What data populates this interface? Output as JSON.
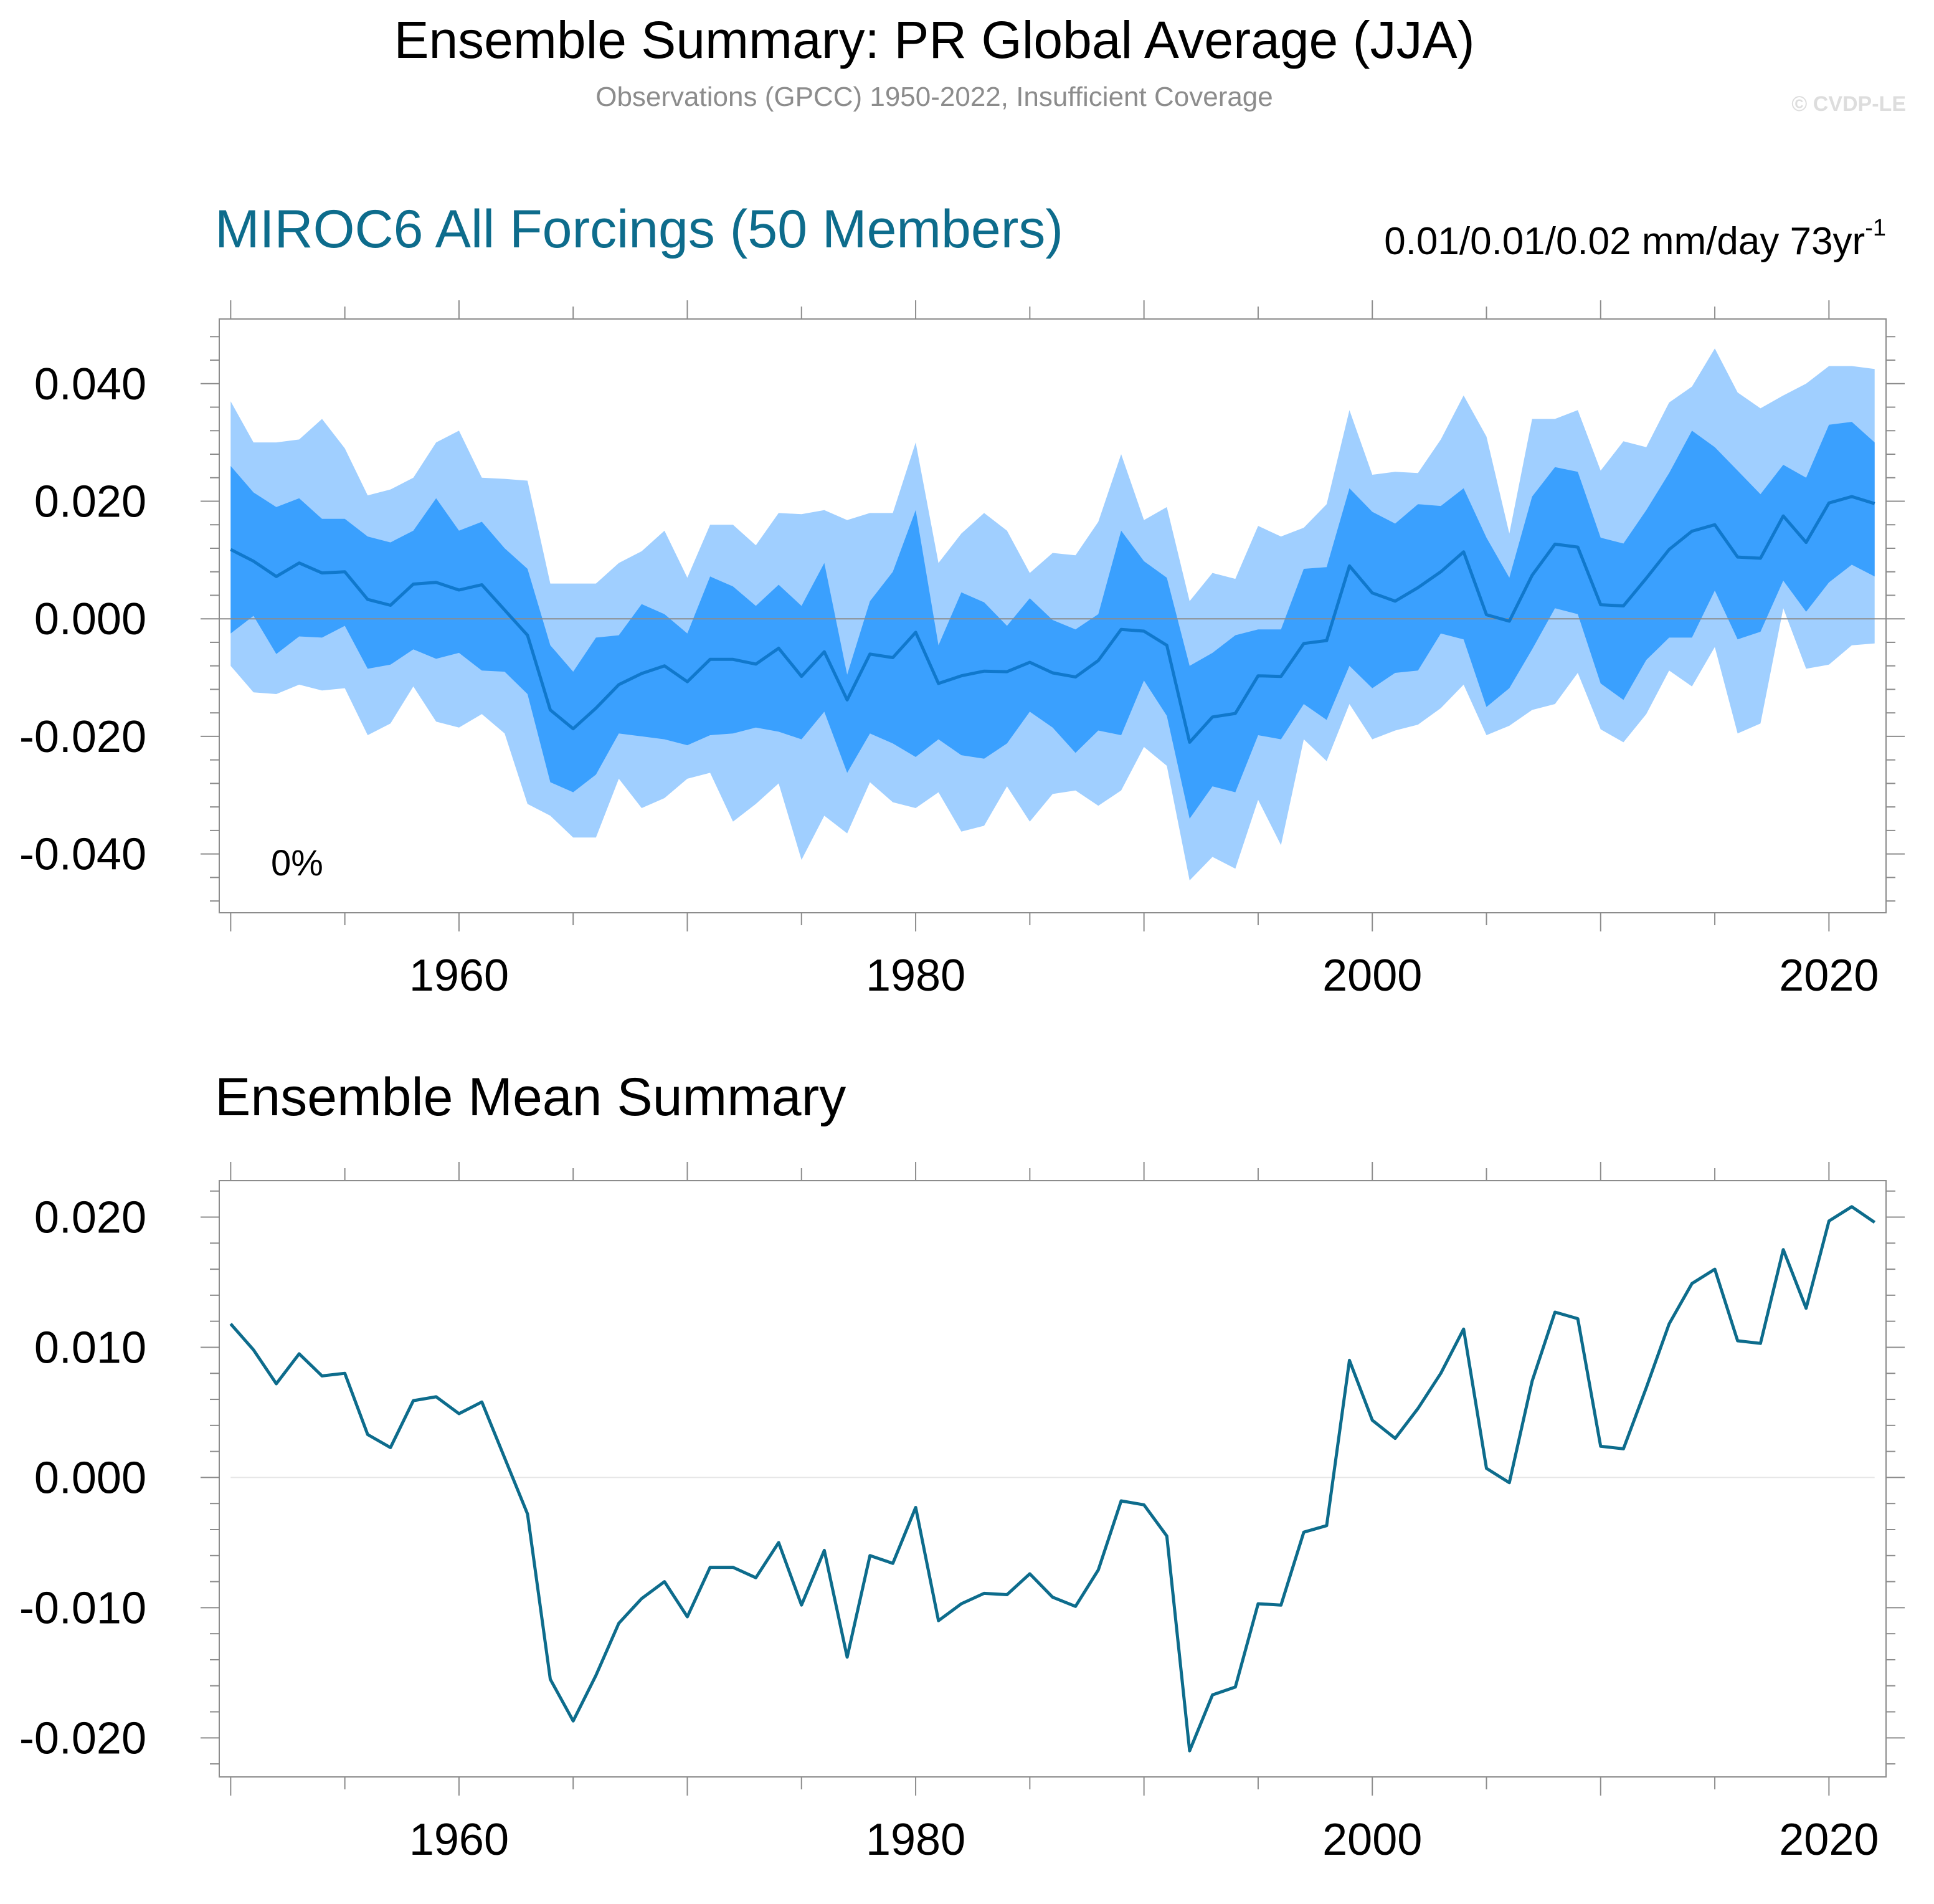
{
  "header": {
    "title": "Ensemble Summary: PR Global Average (JJA)",
    "subtitle": "Observations (GPCC) 1950-2022, Insufficient Coverage",
    "watermark": "© CVDP-LE"
  },
  "colors": {
    "band_outer": "#a0cfff",
    "band_inner": "#3aa0fe",
    "ens_mean_line": "#1078cc",
    "summary_line": "#0d6c8c",
    "panel1_title": "#0d6c8c",
    "axis": "#8c8c8c"
  },
  "chart_data": [
    {
      "type": "area",
      "title": "MIROC6 All Forcings (50 Members)",
      "trend_label": "0.01/0.01/0.02 mm/day 73yr",
      "trend_label_sup": "-1",
      "percent_label": "0%",
      "xlim": [
        1949.5,
        2022.5
      ],
      "ylim": [
        -0.05,
        0.051
      ],
      "xticks": [
        1960,
        1980,
        2000,
        2020
      ],
      "xtick_labels": [
        "1960",
        "1980",
        "2000",
        "2020"
      ],
      "yticks": [
        0.04,
        0.02,
        0.0,
        -0.02,
        -0.04
      ],
      "ytick_labels": [
        "0.040",
        "0.020",
        "0.000",
        "-0.020",
        "-0.040"
      ],
      "x": [
        1950,
        1951,
        1952,
        1953,
        1954,
        1955,
        1956,
        1957,
        1958,
        1959,
        1960,
        1961,
        1962,
        1963,
        1964,
        1965,
        1966,
        1967,
        1968,
        1969,
        1970,
        1971,
        1972,
        1973,
        1974,
        1975,
        1976,
        1977,
        1978,
        1979,
        1980,
        1981,
        1982,
        1983,
        1984,
        1985,
        1986,
        1987,
        1988,
        1989,
        1990,
        1991,
        1992,
        1993,
        1994,
        1995,
        1996,
        1997,
        1998,
        1999,
        2000,
        2001,
        2002,
        2003,
        2004,
        2005,
        2006,
        2007,
        2008,
        2009,
        2010,
        2011,
        2012,
        2013,
        2014,
        2015,
        2016,
        2017,
        2018,
        2019,
        2020,
        2021,
        2022
      ],
      "series": [
        {
          "name": "max",
          "values": [
            0.037,
            0.03,
            0.03,
            0.0305,
            0.034,
            0.029,
            0.021,
            0.022,
            0.024,
            0.03,
            0.032,
            0.024,
            0.0238,
            0.0235,
            0.006,
            0.006,
            0.006,
            0.0095,
            0.0115,
            0.015,
            0.007,
            0.016,
            0.016,
            0.0125,
            0.018,
            0.0178,
            0.0185,
            0.0168,
            0.018,
            0.018,
            0.03,
            0.0095,
            0.0145,
            0.018,
            0.015,
            0.0078,
            0.0112,
            0.0108,
            0.0165,
            0.028,
            0.0168,
            0.019,
            0.003,
            0.0078,
            0.0068,
            0.0158,
            0.014,
            0.0155,
            0.0195,
            0.0355,
            0.0245,
            0.025,
            0.0248,
            0.0305,
            0.038,
            0.031,
            0.0145,
            0.034,
            0.034,
            0.0355,
            0.0252,
            0.0302,
            0.0292,
            0.0368,
            0.0395,
            0.046,
            0.0385,
            0.0358,
            0.038,
            0.04,
            0.043,
            0.043,
            0.0425
          ]
        },
        {
          "name": "p90",
          "values": [
            0.026,
            0.0215,
            0.019,
            0.0205,
            0.017,
            0.017,
            0.014,
            0.013,
            0.015,
            0.0205,
            0.015,
            0.0165,
            0.012,
            0.0085,
            -0.0045,
            -0.009,
            -0.0032,
            -0.0028,
            0.0025,
            0.0008,
            -0.0025,
            0.0072,
            0.0055,
            0.0022,
            0.0058,
            0.0022,
            0.0095,
            -0.0095,
            0.003,
            0.008,
            0.0185,
            -0.0045,
            0.0045,
            0.0028,
            -0.0012,
            0.0035,
            -0.0002,
            -0.0018,
            0.0008,
            0.015,
            0.0098,
            0.007,
            -0.008,
            -0.0058,
            -0.0028,
            -0.0018,
            -0.0018,
            0.0085,
            0.0088,
            0.0222,
            0.0182,
            0.0162,
            0.0195,
            0.0192,
            0.0222,
            0.0138,
            0.007,
            0.0208,
            0.0258,
            0.025,
            0.0138,
            0.0128,
            0.0185,
            0.0248,
            0.032,
            0.0292,
            0.0252,
            0.0212,
            0.0262,
            0.024,
            0.033,
            0.0335,
            0.03
          ]
        },
        {
          "name": "mean",
          "values": [
            0.0118,
            0.0098,
            0.0072,
            0.0095,
            0.0078,
            0.008,
            0.0033,
            0.0023,
            0.0059,
            0.0062,
            0.0049,
            0.0058,
            0.0015,
            -0.0028,
            -0.0155,
            -0.0187,
            -0.0152,
            -0.0112,
            -0.0093,
            -0.008,
            -0.0107,
            -0.0069,
            -0.0069,
            -0.0077,
            -0.005,
            -0.0098,
            -0.0056,
            -0.0138,
            -0.006,
            -0.0066,
            -0.0023,
            -0.011,
            -0.0097,
            -0.0089,
            -0.009,
            -0.0074,
            -0.0092,
            -0.0099,
            -0.0071,
            -0.0018,
            -0.0021,
            -0.0045,
            -0.021,
            -0.0167,
            -0.0161,
            -0.0097,
            -0.0098,
            -0.0042,
            -0.0037,
            0.009,
            0.0044,
            0.003,
            0.0053,
            0.008,
            0.0114,
            0.0007,
            -0.0004,
            0.0074,
            0.0127,
            0.0122,
            0.0024,
            0.0022,
            0.0069,
            0.0118,
            0.0149,
            0.016,
            0.0105,
            0.0103,
            0.0175,
            0.013,
            0.0197,
            0.0208,
            0.0196
          ]
        },
        {
          "name": "p10",
          "values": [
            -0.0025,
            0.0005,
            -0.006,
            -0.003,
            -0.0032,
            -0.0012,
            -0.0085,
            -0.0078,
            -0.0052,
            -0.0068,
            -0.0058,
            -0.0088,
            -0.009,
            -0.0128,
            -0.0278,
            -0.0295,
            -0.0265,
            -0.0195,
            -0.02,
            -0.0205,
            -0.0215,
            -0.0198,
            -0.0195,
            -0.0185,
            -0.0192,
            -0.0205,
            -0.0158,
            -0.0262,
            -0.0195,
            -0.0212,
            -0.0235,
            -0.0205,
            -0.0232,
            -0.0238,
            -0.0212,
            -0.0158,
            -0.0185,
            -0.0228,
            -0.019,
            -0.0198,
            -0.0105,
            -0.0165,
            -0.034,
            -0.0285,
            -0.0295,
            -0.0198,
            -0.0205,
            -0.0145,
            -0.0172,
            -0.008,
            -0.0118,
            -0.0092,
            -0.0088,
            -0.0025,
            -0.0035,
            -0.015,
            -0.0118,
            -0.0052,
            0.0018,
            0.0008,
            -0.011,
            -0.0138,
            -0.007,
            -0.0032,
            -0.0032,
            0.0048,
            -0.0035,
            -0.0022,
            0.0065,
            0.0012,
            0.0062,
            0.0092,
            0.0072
          ]
        },
        {
          "name": "min",
          "values": [
            -0.008,
            -0.0125,
            -0.0128,
            -0.0112,
            -0.0122,
            -0.0118,
            -0.0198,
            -0.0178,
            -0.0115,
            -0.0175,
            -0.0185,
            -0.0162,
            -0.0195,
            -0.0315,
            -0.0335,
            -0.0372,
            -0.0372,
            -0.0272,
            -0.0322,
            -0.0305,
            -0.0272,
            -0.0262,
            -0.0345,
            -0.0315,
            -0.028,
            -0.041,
            -0.0335,
            -0.0365,
            -0.0278,
            -0.0312,
            -0.0322,
            -0.0295,
            -0.0362,
            -0.0352,
            -0.0285,
            -0.0345,
            -0.0298,
            -0.0292,
            -0.0318,
            -0.0292,
            -0.0218,
            -0.025,
            -0.0445,
            -0.0405,
            -0.0425,
            -0.0308,
            -0.0385,
            -0.0205,
            -0.0242,
            -0.0145,
            -0.0205,
            -0.019,
            -0.018,
            -0.0152,
            -0.0112,
            -0.0198,
            -0.0182,
            -0.0155,
            -0.0145,
            -0.0092,
            -0.0188,
            -0.021,
            -0.0162,
            -0.0088,
            -0.0115,
            -0.0048,
            -0.0195,
            -0.0178,
            0.0018,
            -0.0085,
            -0.0078,
            -0.0045,
            -0.0042
          ]
        }
      ]
    },
    {
      "type": "line",
      "title": "Ensemble Mean Summary",
      "xlim": [
        1949.5,
        2022.5
      ],
      "ylim": [
        -0.023,
        0.0228
      ],
      "xticks": [
        1960,
        1980,
        2000,
        2020
      ],
      "xtick_labels": [
        "1960",
        "1980",
        "2000",
        "2020"
      ],
      "yticks": [
        0.02,
        0.01,
        0.0,
        -0.01,
        -0.02
      ],
      "ytick_labels": [
        "0.020",
        "0.010",
        "0.000",
        "-0.010",
        "-0.020"
      ],
      "x": [
        1950,
        1951,
        1952,
        1953,
        1954,
        1955,
        1956,
        1957,
        1958,
        1959,
        1960,
        1961,
        1962,
        1963,
        1964,
        1965,
        1966,
        1967,
        1968,
        1969,
        1970,
        1971,
        1972,
        1973,
        1974,
        1975,
        1976,
        1977,
        1978,
        1979,
        1980,
        1981,
        1982,
        1983,
        1984,
        1985,
        1986,
        1987,
        1988,
        1989,
        1990,
        1991,
        1992,
        1993,
        1994,
        1995,
        1996,
        1997,
        1998,
        1999,
        2000,
        2001,
        2002,
        2003,
        2004,
        2005,
        2006,
        2007,
        2008,
        2009,
        2010,
        2011,
        2012,
        2013,
        2014,
        2015,
        2016,
        2017,
        2018,
        2019,
        2020,
        2021,
        2022
      ],
      "values": [
        0.0118,
        0.0098,
        0.0072,
        0.0095,
        0.0078,
        0.008,
        0.0033,
        0.0023,
        0.0059,
        0.0062,
        0.0049,
        0.0058,
        0.0015,
        -0.0028,
        -0.0155,
        -0.0187,
        -0.0152,
        -0.0112,
        -0.0093,
        -0.008,
        -0.0107,
        -0.0069,
        -0.0069,
        -0.0077,
        -0.005,
        -0.0098,
        -0.0056,
        -0.0138,
        -0.006,
        -0.0066,
        -0.0023,
        -0.011,
        -0.0097,
        -0.0089,
        -0.009,
        -0.0074,
        -0.0092,
        -0.0099,
        -0.0071,
        -0.0018,
        -0.0021,
        -0.0045,
        -0.021,
        -0.0167,
        -0.0161,
        -0.0097,
        -0.0098,
        -0.0042,
        -0.0037,
        0.009,
        0.0044,
        0.003,
        0.0053,
        0.008,
        0.0114,
        0.0007,
        -0.0004,
        0.0074,
        0.0127,
        0.0122,
        0.0024,
        0.0022,
        0.0069,
        0.0118,
        0.0149,
        0.016,
        0.0105,
        0.0103,
        0.0175,
        0.013,
        0.0197,
        0.0208,
        0.0196
      ]
    }
  ]
}
